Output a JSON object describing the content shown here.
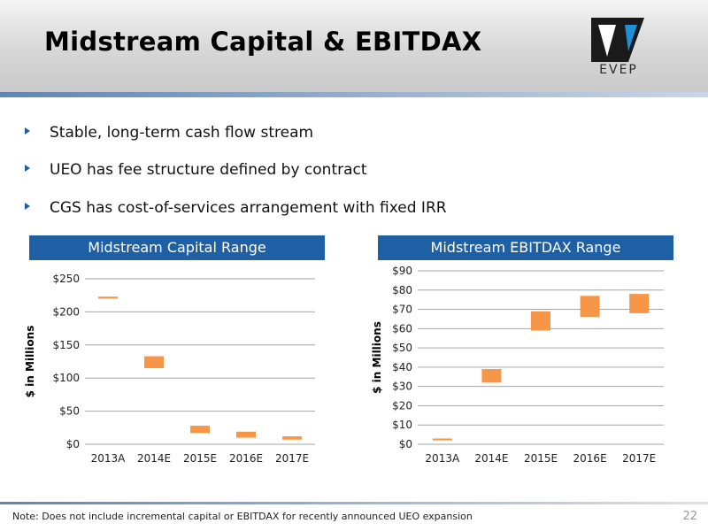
{
  "header": {
    "title": "Midstream Capital & EBITDAX",
    "logo_text": "EVEP"
  },
  "bullets": [
    "Stable, long-term cash flow stream",
    "UEO has fee structure defined by contract",
    "CGS has cost-of-services arrangement with fixed IRR"
  ],
  "panels": {
    "left_title": "Midstream Capital Range",
    "right_title": "Midstream EBITDAX Range"
  },
  "colors": {
    "bar": "#f79646",
    "header_band": "#1f5fa3"
  },
  "chart_data": [
    {
      "type": "bar",
      "title": "Midstream Capital Range",
      "ylabel": "$ in Millions",
      "xlabel": "",
      "categories": [
        "2013A",
        "2014E",
        "2015E",
        "2016E",
        "2017E"
      ],
      "series": [
        {
          "ranges": [
            [
              220,
              223
            ],
            [
              115,
              133
            ],
            [
              17,
              28
            ],
            [
              10,
              19
            ],
            [
              7,
              12
            ]
          ]
        }
      ],
      "ylim": [
        0,
        250
      ],
      "yticks": [
        "$0",
        "$50",
        "$100",
        "$150",
        "$200",
        "$250"
      ],
      "ytick_values": [
        0,
        50,
        100,
        150,
        200,
        250
      ],
      "grid": true,
      "legend": "none"
    },
    {
      "type": "bar",
      "title": "Midstream EBITDAX Range",
      "ylabel": "$ in Millions",
      "xlabel": "",
      "categories": [
        "2013A",
        "2014E",
        "2015E",
        "2016E",
        "2017E"
      ],
      "series": [
        {
          "ranges": [
            [
              2,
              3
            ],
            [
              32,
              39
            ],
            [
              59,
              69
            ],
            [
              66,
              77
            ],
            [
              68,
              78
            ]
          ]
        }
      ],
      "ylim": [
        0,
        90
      ],
      "yticks": [
        "$0",
        "$10",
        "$20",
        "$30",
        "$40",
        "$50",
        "$60",
        "$70",
        "$80",
        "$90"
      ],
      "ytick_values": [
        0,
        10,
        20,
        30,
        40,
        50,
        60,
        70,
        80,
        90
      ],
      "grid": true,
      "legend": "none"
    }
  ],
  "footer": {
    "note": "Note: Does not include incremental capital or EBITDAX for recently announced UEO expansion",
    "page_number": "22"
  }
}
